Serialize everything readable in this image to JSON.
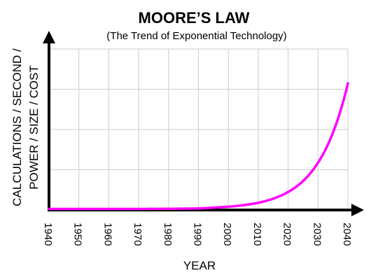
{
  "chart_data": {
    "type": "line",
    "title": "MOORE’S LAW",
    "subtitle": "(The Trend of Exponential Technology)",
    "xlabel": "YEAR",
    "ylabel_lines": [
      "CALCULATIONS / SECOND /",
      "POWER / SIZE / COST"
    ],
    "x_ticks": [
      "1940",
      "1950",
      "1960",
      "1970",
      "1980",
      "1990",
      "2000",
      "2010",
      "2020",
      "2030",
      "2040"
    ],
    "xlim": [
      1940,
      2040
    ],
    "grid": true,
    "y_ticks_labeled": false,
    "series": [
      {
        "color": "#ff00ff",
        "x": [
          1940,
          1950,
          1960,
          1970,
          1980,
          1990,
          1995,
          2000,
          2005,
          2010,
          2015,
          2020,
          2025,
          2030,
          2035,
          2040
        ],
        "y": [
          0.0,
          0.0,
          0.0,
          0.0,
          0.1,
          0.3,
          0.8,
          1.3,
          2.2,
          3.6,
          6.0,
          9.9,
          16.3,
          27.0,
          44.5,
          73.4
        ]
      }
    ]
  }
}
